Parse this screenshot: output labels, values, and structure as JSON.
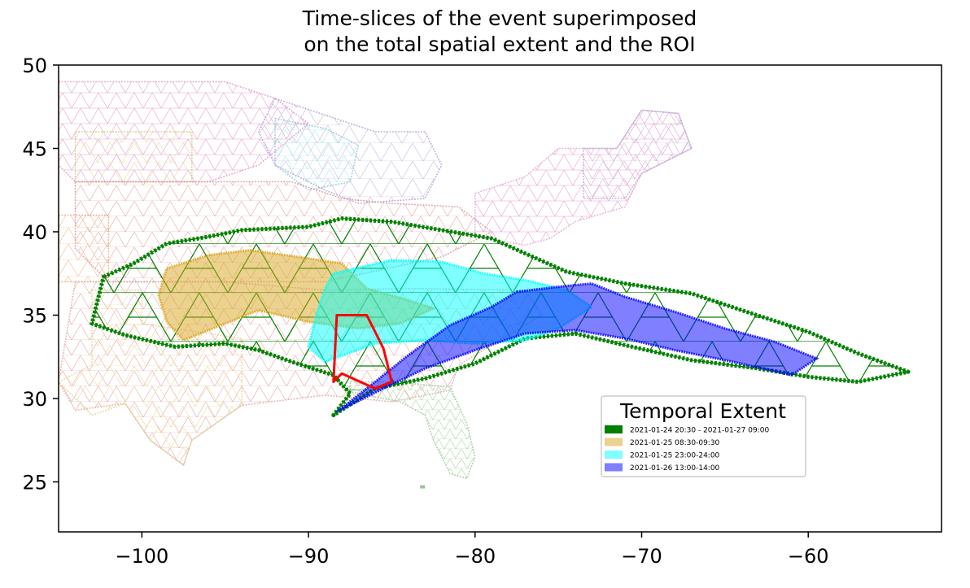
{
  "chart_data": {
    "type": "map",
    "title_lines": [
      "Time-slices of the event superimposed",
      "on the total spatial extent and the ROI"
    ],
    "xlim": [
      -105,
      -52
    ],
    "ylim": [
      22,
      50
    ],
    "x_ticks": [
      -100,
      -90,
      -80,
      -70,
      -60
    ],
    "x_tick_labels": [
      "−100",
      "−90",
      "−80",
      "−70",
      "−60"
    ],
    "y_ticks": [
      25,
      30,
      35,
      40,
      45,
      50
    ],
    "y_tick_labels": [
      "25",
      "30",
      "35",
      "40",
      "45",
      "50"
    ],
    "grid": false,
    "legend": {
      "title": "Temporal Extent",
      "placement": "lower-right",
      "entries": [
        {
          "label": "2021-01-24 20:30 - 2021-01-27 09:00",
          "color": "#008000",
          "alpha": 1.0
        },
        {
          "label": "2021-01-25 08:30-09:30",
          "color": "#daa520",
          "alpha": 0.5
        },
        {
          "label": "2021-01-25 23:00-24:00",
          "color": "#00ffff",
          "alpha": 0.5
        },
        {
          "label": "2021-01-26 13:00-14:00",
          "color": "#0000ff",
          "alpha": 0.5
        }
      ]
    },
    "total_extent": {
      "color": "#008000",
      "outline": [
        [
          -102.3,
          37.3
        ],
        [
          -100.5,
          38.1
        ],
        [
          -98.5,
          39.3
        ],
        [
          -96,
          39.7
        ],
        [
          -94,
          40.1
        ],
        [
          -90,
          40.3
        ],
        [
          -88,
          40.8
        ],
        [
          -85,
          40.6
        ],
        [
          -82,
          40.1
        ],
        [
          -79,
          39.6
        ],
        [
          -77,
          38.7
        ],
        [
          -74.5,
          37.6
        ],
        [
          -71,
          36.9
        ],
        [
          -67,
          36.3
        ],
        [
          -64,
          35.3
        ],
        [
          -60,
          34
        ],
        [
          -57,
          32.7
        ],
        [
          -54,
          31.6
        ],
        [
          -57,
          31
        ],
        [
          -60,
          31.3
        ],
        [
          -63,
          31.8
        ],
        [
          -67,
          32.3
        ],
        [
          -71,
          33.2
        ],
        [
          -74,
          33.9
        ],
        [
          -77,
          33.6
        ],
        [
          -80,
          32.1
        ],
        [
          -83,
          31.2
        ],
        [
          -86,
          30.6
        ],
        [
          -88.5,
          29
        ],
        [
          -87.5,
          30.3
        ],
        [
          -88.5,
          31.4
        ],
        [
          -91,
          32.2
        ],
        [
          -93,
          32.9
        ],
        [
          -95,
          33.3
        ],
        [
          -98,
          33.1
        ],
        [
          -101,
          33.8
        ],
        [
          -103,
          34.5
        ]
      ]
    },
    "time_slices": [
      {
        "label": "2021-01-25 08:30-09:30",
        "color": "#daa520",
        "alpha": 0.5,
        "outline": [
          [
            -98.5,
            37.8
          ],
          [
            -96,
            38.6
          ],
          [
            -93.5,
            38.9
          ],
          [
            -90,
            38.4
          ],
          [
            -88,
            38.1
          ],
          [
            -86.5,
            36.6
          ],
          [
            -84,
            35.9
          ],
          [
            -82.5,
            35.4
          ],
          [
            -84.5,
            34.5
          ],
          [
            -87,
            34.2
          ],
          [
            -90,
            34.6
          ],
          [
            -93,
            35.3
          ],
          [
            -95.5,
            34.3
          ],
          [
            -97.5,
            33.5
          ],
          [
            -98.5,
            34.6
          ],
          [
            -99,
            36.2
          ]
        ]
      },
      {
        "label": "2021-01-25 23:00-24:00",
        "color": "#00ffff",
        "alpha": 0.5,
        "outline": [
          [
            -88.5,
            37.5
          ],
          [
            -85,
            38.3
          ],
          [
            -82,
            38.2
          ],
          [
            -79.5,
            37.5
          ],
          [
            -77,
            37.1
          ],
          [
            -74.5,
            36.5
          ],
          [
            -73,
            35.5
          ],
          [
            -75,
            34.2
          ],
          [
            -77,
            33.5
          ],
          [
            -80,
            33.3
          ],
          [
            -83,
            33.5
          ],
          [
            -86,
            33.3
          ],
          [
            -89,
            32.2
          ],
          [
            -90,
            33.1
          ],
          [
            -89.5,
            35.1
          ],
          [
            -89,
            36.6
          ]
        ]
      },
      {
        "label": "2021-01-26 13:00-14:00",
        "color": "#0000ff",
        "alpha": 0.5,
        "outline": [
          [
            -77.5,
            36.4
          ],
          [
            -75,
            36.7
          ],
          [
            -73,
            36.9
          ],
          [
            -71,
            36.1
          ],
          [
            -68,
            35.2
          ],
          [
            -65,
            34.2
          ],
          [
            -62,
            33.4
          ],
          [
            -59.5,
            32.4
          ],
          [
            -61,
            31.4
          ],
          [
            -64.5,
            32.2
          ],
          [
            -68,
            32.9
          ],
          [
            -71,
            33.6
          ],
          [
            -74,
            34.1
          ],
          [
            -77,
            33.9
          ],
          [
            -80,
            32.9
          ],
          [
            -83,
            31.8
          ],
          [
            -85.5,
            30.6
          ],
          [
            -88.3,
            29.2
          ],
          [
            -86.5,
            30.6
          ],
          [
            -84,
            32.6
          ],
          [
            -81.5,
            34.4
          ],
          [
            -79,
            35.5
          ]
        ]
      }
    ],
    "roi": {
      "color": "#ff0000",
      "outline": [
        [
          -88.3,
          35
        ],
        [
          -86.5,
          35
        ],
        [
          -85.5,
          33
        ],
        [
          -85,
          31
        ],
        [
          -86,
          30.6
        ],
        [
          -88,
          31.5
        ],
        [
          -88.5,
          31
        ]
      ]
    }
  }
}
